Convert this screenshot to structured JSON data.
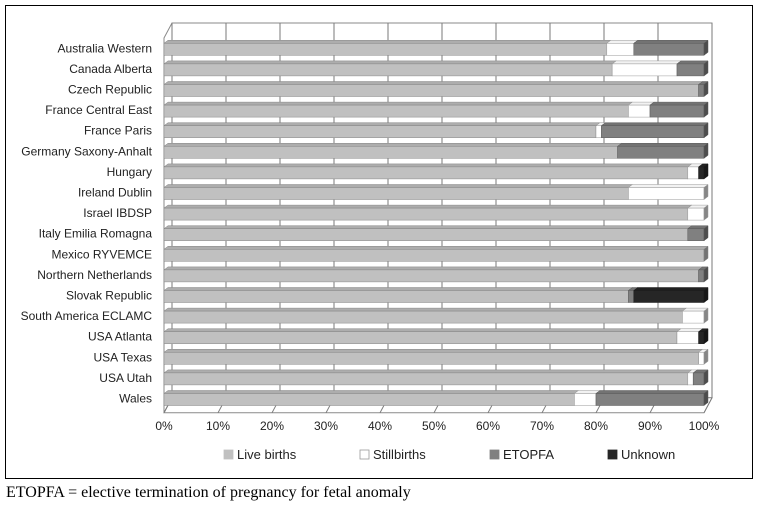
{
  "caption": "ETOPFA = elective termination of pregnancy for fetal anomaly",
  "chart_data": {
    "type": "bar",
    "orientation": "horizontal",
    "stacked": true,
    "style": "3d",
    "categories": [
      "Australia Western",
      "Canada Alberta",
      "Czech Republic",
      "France Central East",
      "France Paris",
      "Germany Saxony-Anhalt",
      "Hungary",
      "Ireland Dublin",
      "Israel IBDSP",
      "Italy Emilia  Romagna",
      "Mexico RYVEMCE",
      "Northern Netherlands",
      "Slovak Republic",
      "South America ECLAMC",
      "USA Atlanta",
      "USA Texas",
      "USA Utah",
      "Wales"
    ],
    "series": [
      {
        "name": "Live births",
        "color": "#c0c0c0",
        "values": [
          82,
          83,
          99,
          86,
          80,
          84,
          97,
          86,
          97,
          97,
          100,
          99,
          86,
          96,
          95,
          99,
          97,
          76
        ]
      },
      {
        "name": "Stillbirths",
        "color": "#ffffff",
        "values": [
          5,
          12,
          0,
          4,
          1,
          0,
          2,
          14,
          3,
          0,
          0,
          0,
          0,
          4,
          4,
          1,
          1,
          4
        ]
      },
      {
        "name": "ETOPFA",
        "color": "#808080",
        "values": [
          13,
          5,
          1,
          10,
          19,
          16,
          0,
          0,
          0,
          3,
          0,
          1,
          1,
          0,
          0,
          0,
          2,
          20
        ]
      },
      {
        "name": "Unknown",
        "color": "#262626",
        "values": [
          0,
          0,
          0,
          0,
          0,
          0,
          1,
          0,
          0,
          0,
          0,
          0,
          13,
          0,
          1,
          0,
          0,
          0
        ]
      }
    ],
    "x_ticks": [
      "0%",
      "10%",
      "20%",
      "30%",
      "40%",
      "50%",
      "60%",
      "70%",
      "80%",
      "90%",
      "100%"
    ],
    "xlim": [
      0,
      100
    ],
    "grid": true,
    "legend": "bottom"
  }
}
